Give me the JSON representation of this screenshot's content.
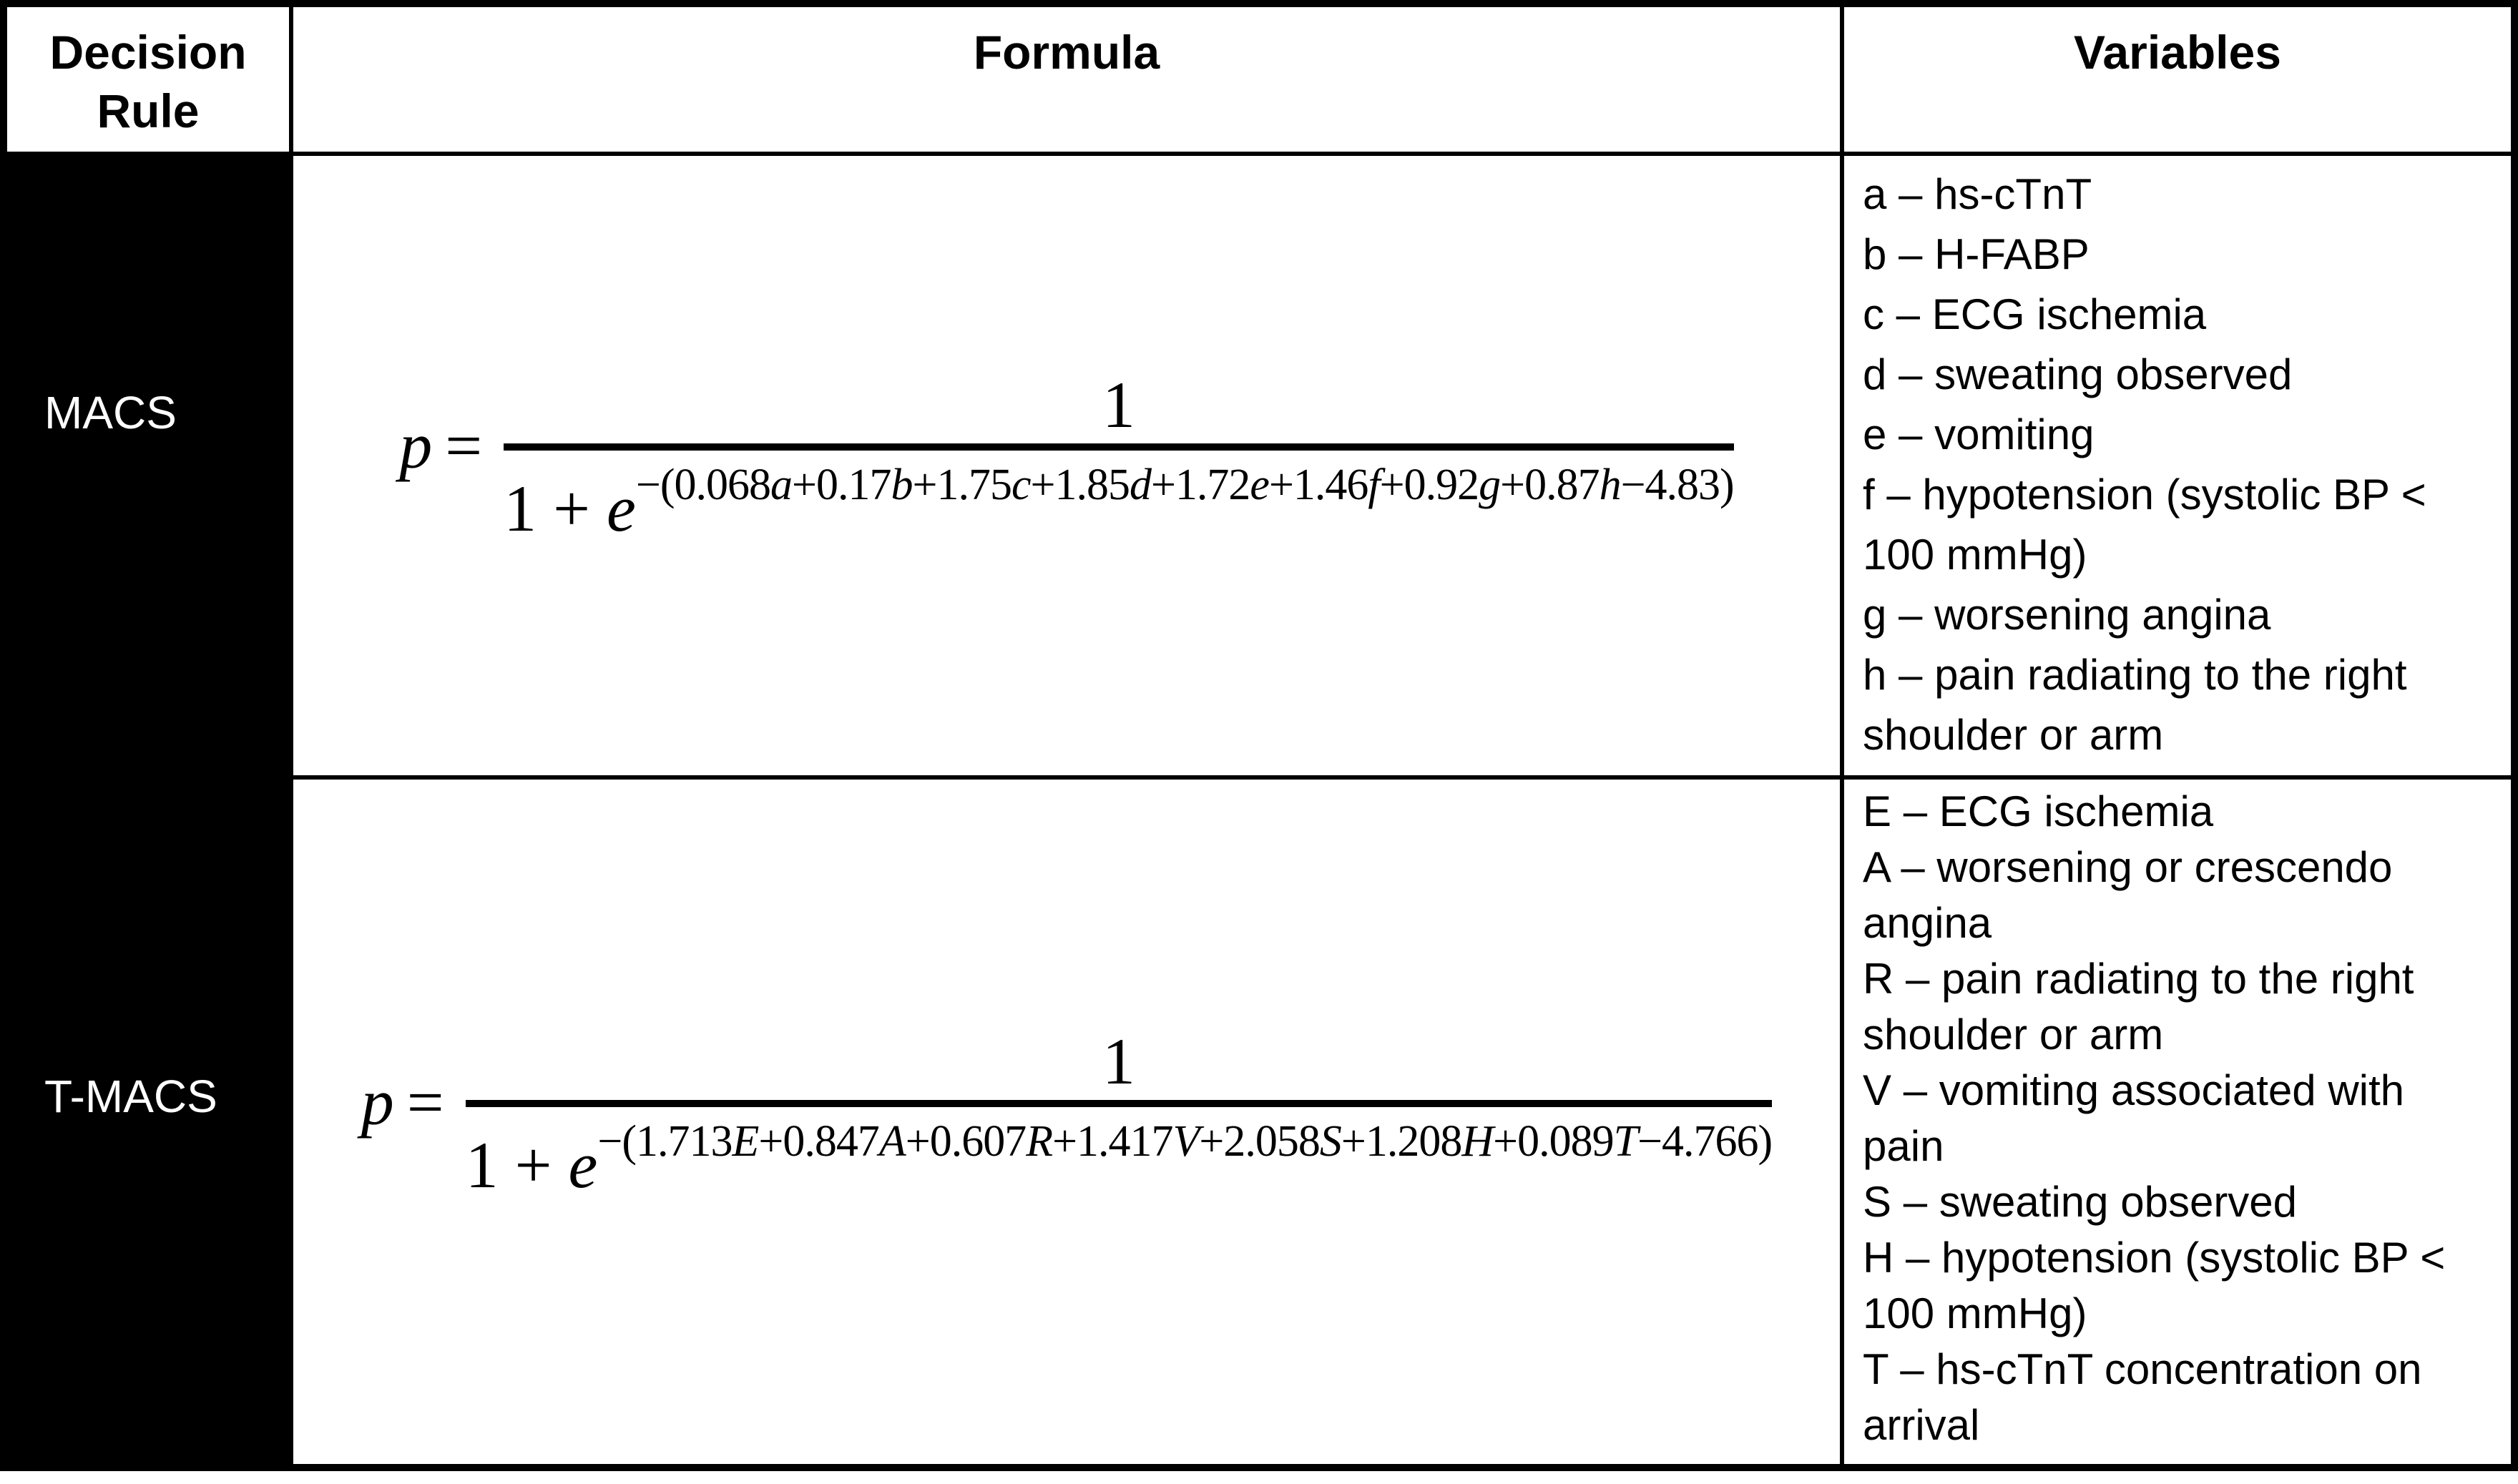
{
  "header": {
    "decision_rule": "Decision Rule",
    "formula": "Formula",
    "variables": "Variables"
  },
  "rows": [
    {
      "rule": "MACS",
      "formula": {
        "lhs": "p",
        "equals": "=",
        "numerator": "1",
        "denominator_base": "1 + e",
        "exponent": "−(0.068a+0.17b+1.75c+1.85d+1.72e+1.46f+0.92g+0.87h−4.83)"
      },
      "variables": [
        "a – hs-cTnT",
        "b – H-FABP",
        "c – ECG ischemia",
        "d – sweating observed",
        "e – vomiting",
        "f – hypotension (systolic BP < 100 mmHg)",
        "g – worsening angina",
        "h – pain radiating to the right shoulder or arm"
      ]
    },
    {
      "rule": "T-MACS",
      "formula": {
        "lhs": "p",
        "equals": "=",
        "numerator": "1",
        "denominator_base": "1 + e",
        "exponent": "−(1.713E+0.847A+0.607R+1.417V+2.058S+1.208H+0.089T−4.766)"
      },
      "variables": [
        "E – ECG ischemia",
        "A – worsening or crescendo angina",
        "R – pain radiating to the right shoulder or arm",
        "V – vomiting associated with pain",
        "S – sweating observed",
        "H – hypotension (systolic BP < 100 mmHg)",
        "T – hs-cTnT concentration on arrival"
      ]
    }
  ],
  "colors": {
    "text": "#000000",
    "background": "#ffffff",
    "rule_cell_background": "#000000",
    "rule_cell_text": "#ffffff",
    "border": "#000000"
  }
}
